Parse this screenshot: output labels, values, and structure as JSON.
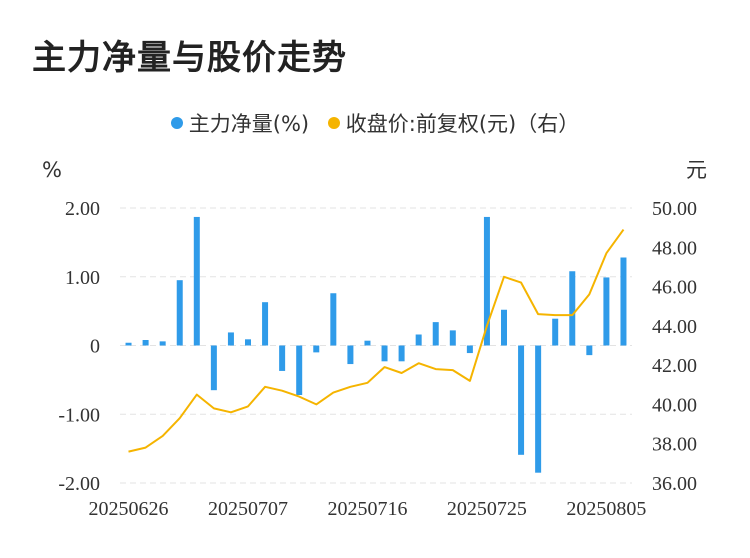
{
  "title": "主力净量与股价走势",
  "colors": {
    "bar": "#2F9BE9",
    "line": "#F5B400",
    "grid": "#E3E3E3",
    "text": "#333333"
  },
  "legend": [
    {
      "label": "主力净量(%)",
      "color": "#2F9BE9"
    },
    {
      "label": "收盘价:前复权(元)（右）",
      "color": "#F5B400"
    }
  ],
  "chart_data": {
    "type": "bar+line",
    "y_left_unit": "%",
    "y_right_unit": "元",
    "y_left_ticks": [
      "2.00",
      "1.00",
      "0",
      "-1.00",
      "-2.00"
    ],
    "y_right_ticks": [
      "50.00",
      "48.00",
      "46.00",
      "44.00",
      "42.00",
      "40.00",
      "38.00",
      "36.00"
    ],
    "ylim_left": [
      -2,
      2
    ],
    "ylim_right": [
      36,
      50
    ],
    "x_ticks": [
      "20250626",
      "20250707",
      "20250716",
      "20250725",
      "20250805"
    ],
    "categories": [
      "20250626",
      "20250627",
      "20250630",
      "20250701",
      "20250702",
      "20250703",
      "20250704",
      "20250707",
      "20250708",
      "20250709",
      "20250710",
      "20250711",
      "20250714",
      "20250715",
      "20250716",
      "20250717",
      "20250718",
      "20250721",
      "20250722",
      "20250723",
      "20250724",
      "20250725",
      "20250728",
      "20250729",
      "20250730",
      "20250731",
      "20250801",
      "20250804",
      "20250805",
      "20250806"
    ],
    "series": [
      {
        "name": "主力净量(%)",
        "type": "bar",
        "values": [
          0.04,
          0.08,
          0.06,
          0.95,
          1.87,
          -0.65,
          0.19,
          0.09,
          0.63,
          -0.37,
          -0.72,
          -0.1,
          0.76,
          -0.27,
          0.07,
          -0.23,
          -0.23,
          0.16,
          0.34,
          0.22,
          -0.11,
          1.87,
          0.52,
          -1.59,
          -1.85,
          0.39,
          1.08,
          -0.14,
          0.99,
          1.28
        ]
      },
      {
        "name": "收盘价:前复权(元)（右）",
        "type": "line",
        "values": [
          37.6,
          37.8,
          38.4,
          39.3,
          40.5,
          39.8,
          39.6,
          39.9,
          40.9,
          40.7,
          40.4,
          40.0,
          40.6,
          40.9,
          41.1,
          41.9,
          41.6,
          42.1,
          41.8,
          41.75,
          41.2,
          44.0,
          46.5,
          46.2,
          44.6,
          44.55,
          44.55,
          45.6,
          47.7,
          48.9
        ]
      }
    ],
    "grid": true,
    "legend_position": "top"
  }
}
